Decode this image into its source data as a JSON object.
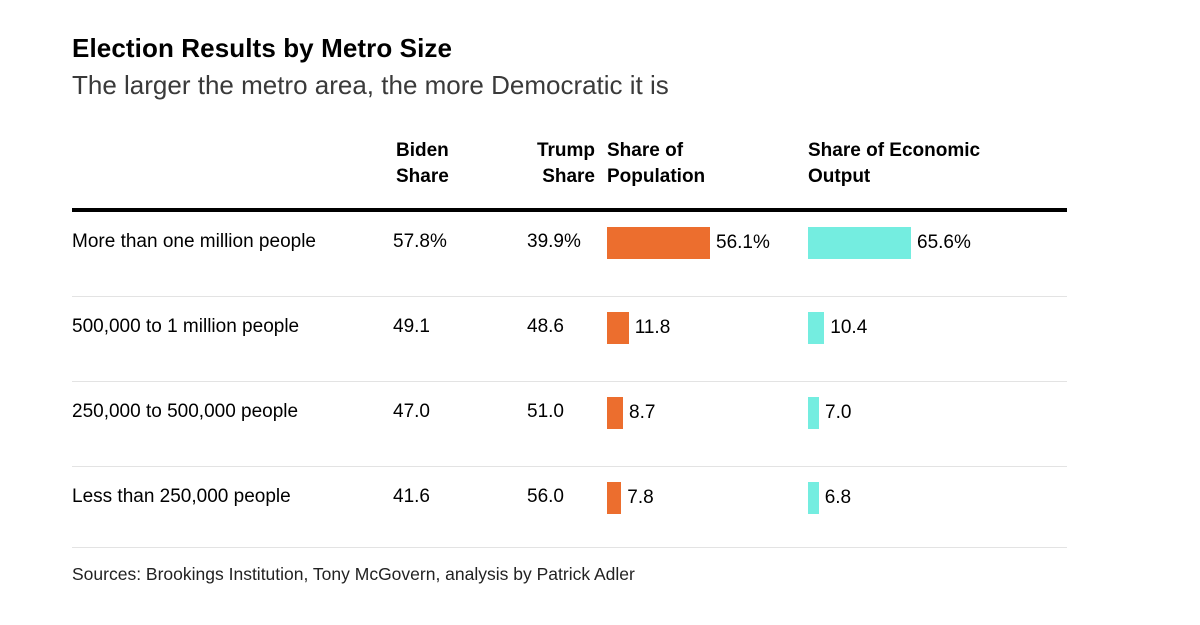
{
  "header": {
    "title": "Election Results by Metro Size",
    "subtitle": "The larger the metro area, the more Democratic it is"
  },
  "chart_data": {
    "type": "table",
    "title": "Election Results by Metro Size",
    "subtitle": "The larger the metro area, the more Democratic it is",
    "layout_hints": {
      "bars_in_columns": [
        "Share of Population",
        "Share of Economic Output"
      ],
      "bar_scale": "each bar column scaled to its own max value",
      "grid": "off"
    },
    "columns": {
      "metro": "",
      "biden": "Biden Share",
      "trump": "Trump Share",
      "population": "Share of Population",
      "economic": "Share of Economic Output"
    },
    "bar_max": {
      "population": 56.1,
      "economic": 65.6
    },
    "colors": {
      "population_bar": "#EC6E2E",
      "economic_bar": "#74EDE0",
      "header_rule": "#000000",
      "row_divider": "#e3e3e3"
    },
    "rows": [
      {
        "label": "More than one million people",
        "biden": "57.8%",
        "trump": "39.9%",
        "pop_share": 56.1,
        "pop_label": "56.1%",
        "econ_share": 65.6,
        "econ_label": "65.6%"
      },
      {
        "label": "500,000 to 1 million people",
        "biden": "49.1",
        "trump": "48.6",
        "pop_share": 11.8,
        "pop_label": "11.8",
        "econ_share": 10.4,
        "econ_label": "10.4"
      },
      {
        "label": "250,000 to 500,000 people",
        "biden": "47.0",
        "trump": "51.0",
        "pop_share": 8.7,
        "pop_label": "8.7",
        "econ_share": 7.0,
        "econ_label": "7.0"
      },
      {
        "label": "Less than 250,000 people",
        "biden": "41.6",
        "trump": "56.0",
        "pop_share": 7.8,
        "pop_label": "7.8",
        "econ_share": 6.8,
        "econ_label": "6.8"
      }
    ]
  },
  "footer": {
    "sources": "Sources: Brookings Institution, Tony McGovern, analysis by Patrick Adler"
  }
}
